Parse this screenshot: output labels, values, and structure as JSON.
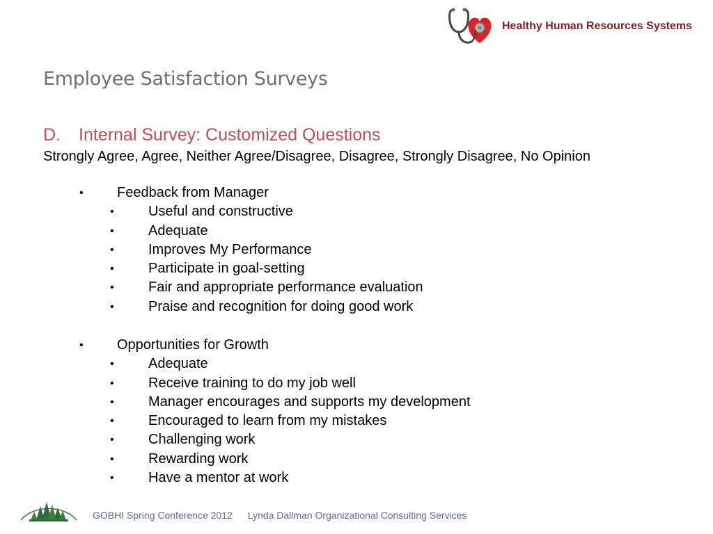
{
  "header": {
    "brand_name": "Healthy Human Resources Systems",
    "logo_icon": "stethoscope-heart-icon",
    "brand_color": "#7f2222",
    "heart_color": "#d9252a"
  },
  "slide": {
    "title": "Employee Satisfaction Surveys",
    "section_letter": "D.",
    "section_title": "Internal Survey: Customized Questions",
    "section_color": "#c0504d",
    "scale": "Strongly Agree, Agree, Neither Agree/Disagree, Disagree, Strongly Disagree, No Opinion"
  },
  "groups": [
    {
      "heading": "Feedback from Manager",
      "items": [
        "Useful and constructive",
        "Adequate",
        "Improves My Performance",
        "Participate in goal-setting",
        "Fair and appropriate performance evaluation",
        "Praise and recognition for doing good work"
      ]
    },
    {
      "heading": "Opportunities for Growth",
      "items": [
        "Adequate",
        "Receive training to do my job well",
        "Manager encourages and supports my development",
        "Encouraged to learn from my mistakes",
        "Challenging work",
        "Rewarding work",
        "Have a mentor at work"
      ]
    }
  ],
  "bullet_char": "•",
  "footer": {
    "logo_icon": "evergreen-trees-icon",
    "conference": "GOBHI Spring Conference 2012",
    "organization": "Lynda Dallman Organizational Consulting Services",
    "color": "#5a6aa0"
  }
}
